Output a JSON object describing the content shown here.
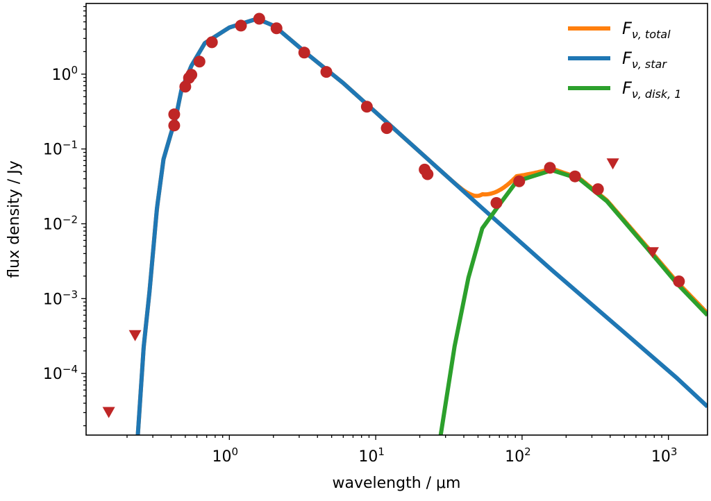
{
  "chart_data": {
    "type": "line",
    "title": "",
    "xlabel": "wavelength / μm",
    "ylabel": "flux density / Jy",
    "xscale": "log",
    "yscale": "log",
    "xlim": [
      0.105,
      1850
    ],
    "ylim": [
      1.5e-05,
      8.8
    ],
    "grid": false,
    "legend_position": "top-right",
    "x_ticks": [
      {
        "value": 1,
        "base": "10",
        "exp": "0"
      },
      {
        "value": 10,
        "base": "10",
        "exp": "1"
      },
      {
        "value": 100,
        "base": "10",
        "exp": "2"
      },
      {
        "value": 1000,
        "base": "10",
        "exp": "3"
      }
    ],
    "y_ticks": [
      {
        "value": 1,
        "base": "10",
        "exp": "0"
      },
      {
        "value": 0.1,
        "base": "10",
        "exp": "−1"
      },
      {
        "value": 0.01,
        "base": "10",
        "exp": "−2"
      },
      {
        "value": 0.001,
        "base": "10",
        "exp": "−3"
      },
      {
        "value": 0.0001,
        "base": "10",
        "exp": "−4"
      }
    ],
    "series": [
      {
        "name": "F_ν,total",
        "legend_main": "F",
        "legend_sub": "ν, total",
        "color": "#ff7f0e",
        "derived": "sum of star and disk"
      },
      {
        "name": "F_ν,star",
        "legend_main": "F",
        "legend_sub": "ν, star",
        "color": "#1f77b4",
        "x": [
          0.237,
          0.26,
          0.285,
          0.32,
          0.355,
          0.395,
          0.43,
          0.47,
          0.55,
          0.68,
          1.0,
          1.55,
          2.03,
          3.5,
          6.0,
          18,
          53,
          160,
          470,
          1140,
          1850
        ],
        "y": [
          1.5e-05,
          0.00023,
          0.00126,
          0.016,
          0.073,
          0.15,
          0.26,
          0.61,
          1.29,
          2.6,
          4.2,
          5.5,
          4.4,
          1.78,
          0.76,
          0.11,
          0.0164,
          0.0024,
          0.00039,
          8.7e-05,
          3.6e-05
        ]
      },
      {
        "name": "F_ν,disk,1",
        "legend_main": "F",
        "legend_sub": "ν, disk, 1",
        "color": "#2ca02c",
        "x": [
          27.8,
          34.6,
          43,
          53.5,
          70,
          92,
          160,
          245,
          380,
          730,
          1140,
          1850
        ],
        "y": [
          1.5e-05,
          0.00023,
          0.0019,
          0.0087,
          0.018,
          0.037,
          0.052,
          0.04,
          0.02,
          0.0045,
          0.0016,
          0.0006
        ]
      }
    ],
    "photometry": {
      "color": "#bf2626",
      "detections": {
        "x": [
          0.42,
          0.42,
          0.5,
          0.53,
          0.55,
          0.625,
          0.76,
          1.2,
          1.6,
          2.1,
          3.25,
          4.6,
          8.7,
          11.9,
          21.6,
          22.6,
          66.8,
          95.6,
          155,
          230,
          330,
          1180
        ],
        "y": [
          0.206,
          0.29,
          0.68,
          0.89,
          0.98,
          1.47,
          2.67,
          4.45,
          5.5,
          4.1,
          1.94,
          1.07,
          0.367,
          0.19,
          0.053,
          0.046,
          0.019,
          0.037,
          0.056,
          0.043,
          0.029,
          0.0017
        ]
      },
      "upper_limits": {
        "x": [
          0.15,
          0.227,
          417,
          780
        ],
        "y": [
          3e-05,
          0.00032,
          0.063,
          0.0041
        ]
      }
    }
  }
}
